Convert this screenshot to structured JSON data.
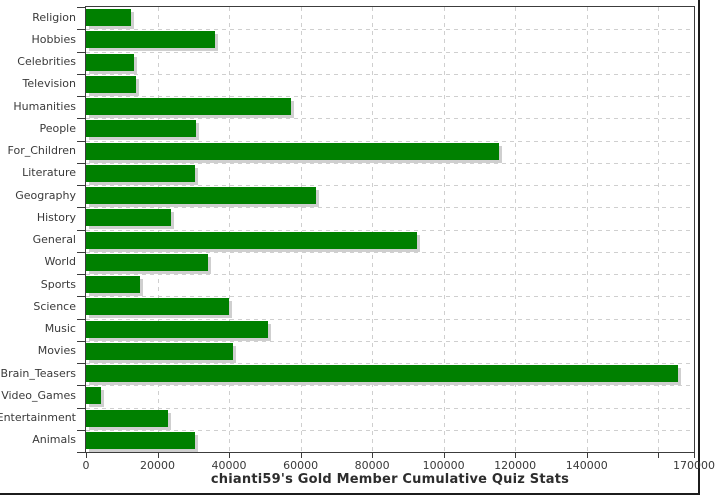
{
  "chart_data": {
    "type": "bar",
    "orientation": "horizontal",
    "title": "chianti59's Gold Member Cumulative Quiz Stats",
    "xlabel": "",
    "ylabel": "",
    "legend": "none",
    "grid": "dashed",
    "xlim": [
      0,
      170000
    ],
    "x_tick_interval": 20000,
    "x_ticks": [
      {
        "value": 0,
        "label": "0"
      },
      {
        "value": 20000,
        "label": "20000"
      },
      {
        "value": 40000,
        "label": "40000"
      },
      {
        "value": 60000,
        "label": "60000"
      },
      {
        "value": 80000,
        "label": "80000"
      },
      {
        "value": 100000,
        "label": "100000"
      },
      {
        "value": 120000,
        "label": "120000"
      },
      {
        "value": 140000,
        "label": "140000"
      },
      {
        "value": 160000,
        "label": ""
      },
      {
        "value": 170000,
        "label": "170000"
      }
    ],
    "categories": [
      "Religion",
      "Hobbies",
      "Celebrities",
      "Television",
      "Humanities",
      "People",
      "For_Children",
      "Literature",
      "Geography",
      "History",
      "General",
      "World",
      "Sports",
      "Science",
      "Music",
      "Movies",
      "Brain_Teasers",
      "Video_Games",
      "Entertainment",
      "Animals"
    ],
    "values": [
      12700,
      36000,
      13400,
      14000,
      57300,
      30700,
      115400,
      30600,
      64300,
      23800,
      92600,
      34100,
      15000,
      40100,
      50800,
      41100,
      165600,
      4300,
      23000,
      30600
    ],
    "colors": {
      "bar": "#008000",
      "bar_shadow": "#cfcfcf",
      "gridline": "#cfcfcf",
      "axis": "#3c3c3c",
      "tick_text": "#3a3a3a",
      "title_text": "#2d2d2d",
      "background": "#ffffff",
      "frame_border": "#1c1c1c"
    }
  }
}
